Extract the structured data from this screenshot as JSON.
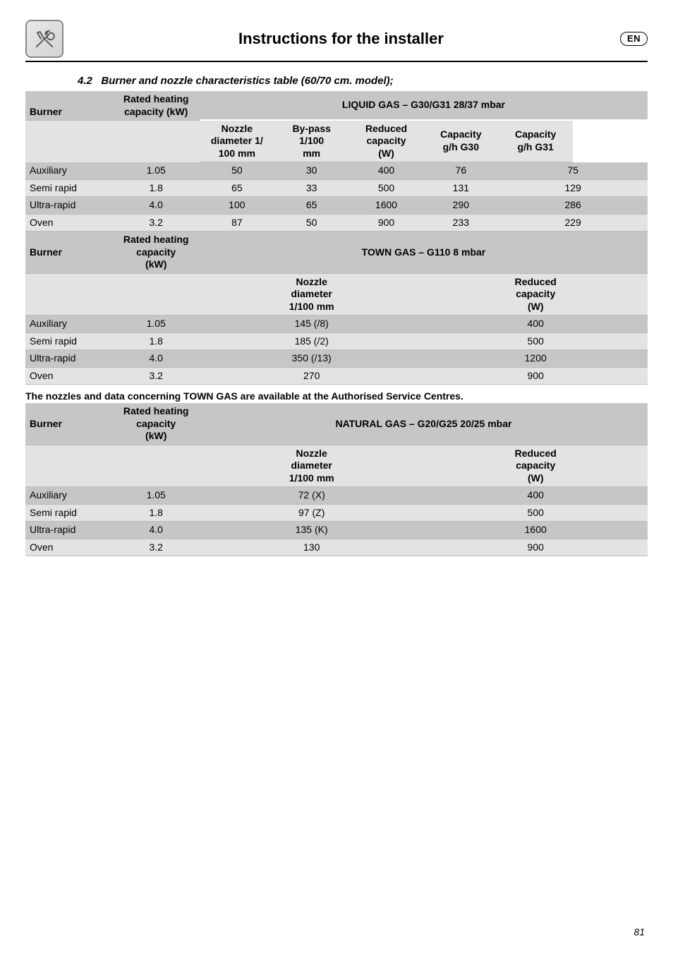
{
  "header": {
    "title": "Instructions for the installer",
    "lang": "EN"
  },
  "section": {
    "number": "4.2",
    "title": "Burner and nozzle characteristics table (60/70 cm. model);"
  },
  "columns": {
    "burner": "Burner",
    "rated_kw": "Rated heating\ncapacity (kW)",
    "rated_kw_ml": "Rated heating\ncapacity\n(kW)",
    "nozzle_100": "Nozzle\ndiameter 1/\n100 mm",
    "nozzle_1_100": "Nozzle\ndiameter\n1/100 mm",
    "bypass": "By-pass\n1/100\nmm",
    "reduced": "Reduced\ncapacity\n(W)",
    "cap_g30": "Capacity\ng/h G30",
    "cap_g31": "Capacity\ng/h G31"
  },
  "gases": {
    "liquid": "LIQUID GAS – G30/G31 28/37 mbar",
    "town": "TOWN GAS – G110 8 mbar",
    "natural": "NATURAL GAS – G20/G25 20/25 mbar"
  },
  "rows": {
    "aux": "Auxiliary",
    "semi": "Semi rapid",
    "ultra": "Ultra-rapid",
    "oven": "Oven"
  },
  "liquid": {
    "aux": {
      "kw": "1.05",
      "noz": "50",
      "bp": "30",
      "red": "400",
      "g30": "76",
      "g31": "75"
    },
    "semi": {
      "kw": "1.8",
      "noz": "65",
      "bp": "33",
      "red": "500",
      "g30": "131",
      "g31": "129"
    },
    "ultra": {
      "kw": "4.0",
      "noz": "100",
      "bp": "65",
      "red": "1600",
      "g30": "290",
      "g31": "286"
    },
    "oven": {
      "kw": "3.2",
      "noz": "87",
      "bp": "50",
      "red": "900",
      "g30": "233",
      "g31": "229"
    }
  },
  "town": {
    "aux": {
      "kw": "1.05",
      "noz": "145 (/8)",
      "red": "400"
    },
    "semi": {
      "kw": "1.8",
      "noz": "185 (/2)",
      "red": "500"
    },
    "ultra": {
      "kw": "4.0",
      "noz": "350 (/13)",
      "red": "1200"
    },
    "oven": {
      "kw": "3.2",
      "noz": "270",
      "red": "900"
    }
  },
  "note": "The nozzles and data concerning TOWN GAS are available at the Authorised Service Centres.",
  "natural": {
    "aux": {
      "kw": "1.05",
      "noz": "72 (X)",
      "red": "400"
    },
    "semi": {
      "kw": "1.8",
      "noz": "97 (Z)",
      "red": "500"
    },
    "ultra": {
      "kw": "4.0",
      "noz": "135 (K)",
      "red": "1600"
    },
    "oven": {
      "kw": "3.2",
      "noz": "130",
      "red": "900"
    }
  },
  "page": "81"
}
